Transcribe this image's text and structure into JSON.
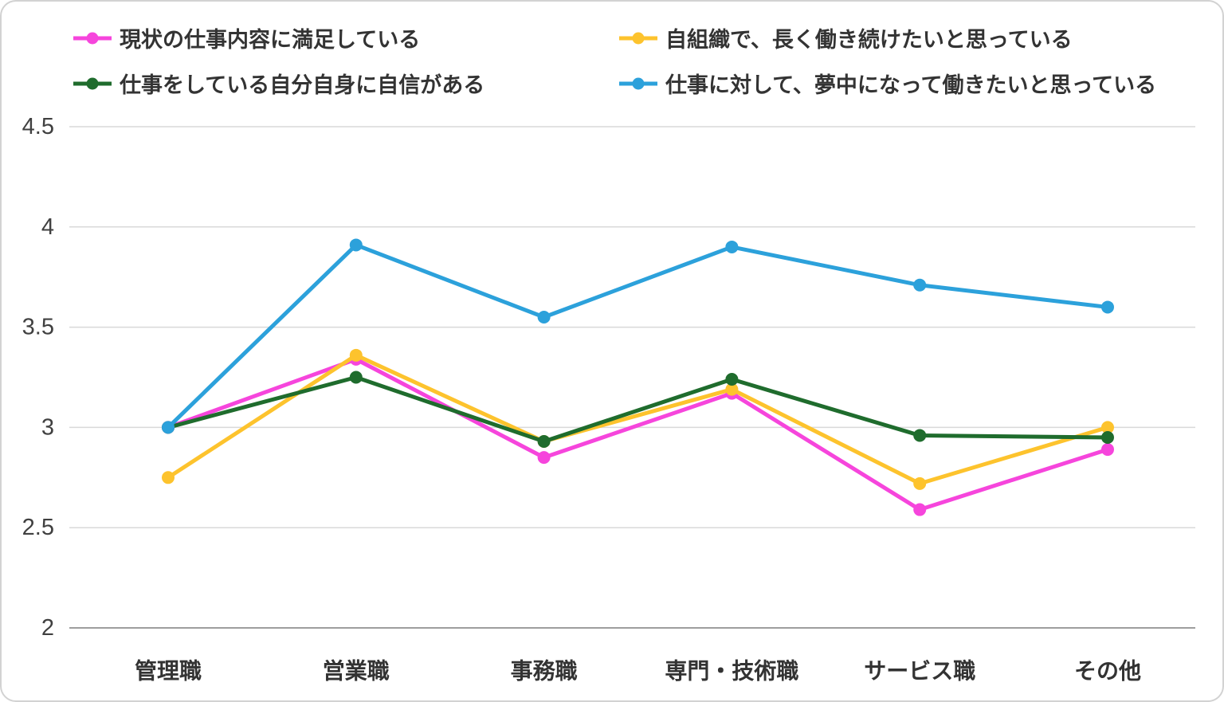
{
  "chart_data": {
    "type": "line",
    "title": "",
    "xlabel": "",
    "ylabel": "",
    "categories": [
      "管理職",
      "営業職",
      "事務職",
      "専門・技術職",
      "サービス職",
      "その他"
    ],
    "series": [
      {
        "name": "現状の仕事内容に満足している",
        "color": "#F645DC",
        "values": [
          3.0,
          3.34,
          2.85,
          3.17,
          2.59,
          2.89
        ]
      },
      {
        "name": "自組織で、長く働き続けたいと思っている",
        "color": "#FDC32D",
        "values": [
          2.75,
          3.36,
          2.93,
          3.19,
          2.72,
          3.0
        ]
      },
      {
        "name": "仕事をしている自分自身に自信がある",
        "color": "#1F6C2D",
        "values": [
          3.0,
          3.25,
          2.93,
          3.24,
          2.96,
          2.95
        ]
      },
      {
        "name": "仕事に対して、夢中になって働きたいと思っている",
        "color": "#2CA1DB",
        "values": [
          3.0,
          3.91,
          3.55,
          3.9,
          3.71,
          3.6
        ]
      }
    ],
    "y_ticks": [
      4.5,
      4,
      3.5,
      3,
      2.5,
      2
    ],
    "ylim": [
      2,
      4.5
    ],
    "grid": true,
    "gridline_color": "#d9d9d9",
    "axis_line_color": "#9e9e9e",
    "legend_position": "top"
  }
}
